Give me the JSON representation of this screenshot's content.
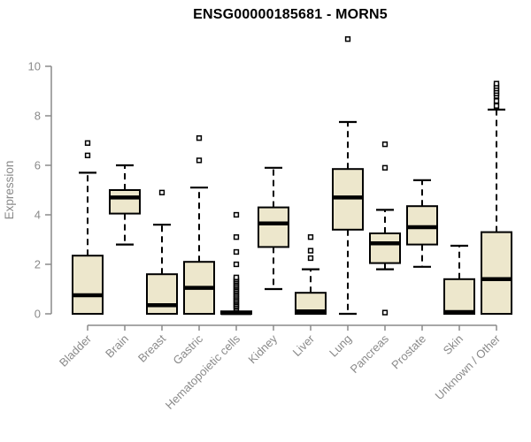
{
  "title": "ENSG00000185681 - MORN5",
  "style": {
    "box_fill": "#EDE7CC",
    "box_stroke": "#000000",
    "median_color": "#000000",
    "whisker_color": "#000000",
    "outlier_stroke": "#000000",
    "outlier_fill": "#FFFFFF",
    "axis_color": "#8A8A8A",
    "tick_label_color": "#8A8A8A",
    "title_color": "#000000",
    "background": "#FFFFFF"
  },
  "chart_data": {
    "type": "boxplot",
    "title": "ENSG00000185681 - MORN5",
    "xlabel": "",
    "ylabel": "Expression",
    "ylim": [
      0,
      10
    ],
    "yticks": [
      0,
      2,
      4,
      6,
      8,
      10
    ],
    "grid": false,
    "legend": "none",
    "categories": [
      "Bladder",
      "Brain",
      "Breast",
      "Gastric",
      "Hematopoietic cells",
      "Kidney",
      "Liver",
      "Lung",
      "Pancreas",
      "Prostate",
      "Skin",
      "Unknown / Other"
    ],
    "boxes": [
      {
        "category": "Bladder",
        "low": 0,
        "q1": 0,
        "median": 0.75,
        "q3": 2.35,
        "high": 5.7,
        "outliers": [
          6.4,
          6.9
        ]
      },
      {
        "category": "Brain",
        "low": 2.8,
        "q1": 4.05,
        "median": 4.7,
        "q3": 5.0,
        "high": 6.0,
        "outliers": []
      },
      {
        "category": "Breast",
        "low": 0,
        "q1": 0,
        "median": 0.35,
        "q3": 1.6,
        "high": 3.6,
        "outliers": [
          4.9
        ]
      },
      {
        "category": "Gastric",
        "low": 0,
        "q1": 0,
        "median": 1.05,
        "q3": 2.1,
        "high": 5.1,
        "outliers": [
          6.2,
          7.1
        ]
      },
      {
        "category": "Hematopoietic cells",
        "low": 0,
        "q1": 0,
        "median": 0.03,
        "q3": 0.1,
        "high": 0.12,
        "outliers": [
          0.2,
          0.27,
          0.33,
          0.4,
          0.47,
          0.53,
          0.6,
          0.67,
          0.73,
          0.8,
          0.87,
          0.93,
          1.0,
          1.07,
          1.13,
          1.2,
          1.27,
          1.33,
          1.4,
          1.47,
          2.0,
          2.5,
          3.1,
          4.0
        ]
      },
      {
        "category": "Kidney",
        "low": 1.0,
        "q1": 2.7,
        "median": 3.65,
        "q3": 4.3,
        "high": 5.9,
        "outliers": []
      },
      {
        "category": "Liver",
        "low": 0,
        "q1": 0,
        "median": 0.1,
        "q3": 0.85,
        "high": 1.8,
        "outliers": [
          2.25,
          2.55,
          3.1
        ]
      },
      {
        "category": "Lung",
        "low": 0,
        "q1": 3.4,
        "median": 4.7,
        "q3": 5.85,
        "high": 7.75,
        "outliers": [
          11.1
        ]
      },
      {
        "category": "Pancreas",
        "low": 1.8,
        "q1": 2.05,
        "median": 2.85,
        "q3": 3.25,
        "high": 4.2,
        "outliers": [
          0.05,
          5.9,
          6.85
        ]
      },
      {
        "category": "Prostate",
        "low": 1.9,
        "q1": 2.8,
        "median": 3.5,
        "q3": 4.35,
        "high": 5.4,
        "outliers": []
      },
      {
        "category": "Skin",
        "low": 0,
        "q1": 0,
        "median": 0.07,
        "q3": 1.4,
        "high": 2.75,
        "outliers": []
      },
      {
        "category": "Unknown / Other",
        "low": 0,
        "q1": 0,
        "median": 1.4,
        "q3": 3.3,
        "high": 8.25,
        "outliers": [
          8.4,
          8.6,
          8.8,
          8.9,
          9.0,
          9.1,
          9.2,
          9.3
        ]
      }
    ]
  }
}
